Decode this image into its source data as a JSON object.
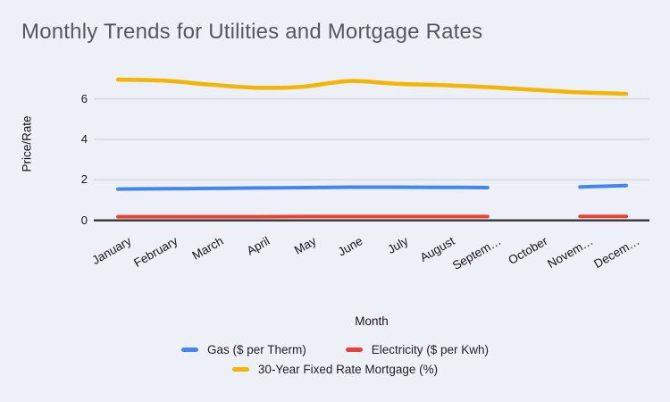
{
  "page": {
    "background_color": "#edf1f7"
  },
  "chart": {
    "title": "Monthly Trends for Utilities and Mortgage Rates",
    "title_color": "#55585c"
  },
  "chart_data": {
    "type": "line",
    "smooth": true,
    "title": "Monthly Trends for Utilities and Mortgage Rates",
    "xlabel": "Month",
    "ylabel": "Price/Rate",
    "x": [
      "January",
      "February",
      "March",
      "April",
      "May",
      "June",
      "July",
      "August",
      "September",
      "October",
      "November",
      "December"
    ],
    "x_tick_labels": [
      "January",
      "February",
      "March",
      "April",
      "May",
      "June",
      "July",
      "August",
      "Septem…",
      "October",
      "Novem…",
      "Decem…"
    ],
    "yticks": [
      0,
      2,
      4,
      6
    ],
    "ylim": [
      0,
      7.6
    ],
    "grid": true,
    "legend_position": "bottom",
    "axis_color": "#333333",
    "gridline_color": "#d7dbe0",
    "series": [
      {
        "id": "gas",
        "name": "Gas ($ per Therm)",
        "color": "#4285f4",
        "stroke_width": 4,
        "values": [
          1.55,
          1.56,
          1.58,
          1.6,
          1.62,
          1.64,
          1.64,
          1.63,
          1.62,
          null,
          1.65,
          1.72
        ]
      },
      {
        "id": "electricity",
        "name": "Electricity ($ per Kwh)",
        "color": "#ea4335",
        "stroke_width": 4,
        "values": [
          0.18,
          0.18,
          0.18,
          0.18,
          0.19,
          0.19,
          0.19,
          0.19,
          0.19,
          null,
          0.2,
          0.2
        ]
      },
      {
        "id": "mortgage",
        "name": "30-Year Fixed Rate Mortgage (%)",
        "color": "#f5b400",
        "stroke_width": 4.5,
        "values": [
          6.95,
          6.9,
          6.7,
          6.55,
          6.6,
          6.88,
          6.75,
          6.68,
          6.58,
          6.45,
          6.32,
          6.25
        ]
      }
    ]
  }
}
